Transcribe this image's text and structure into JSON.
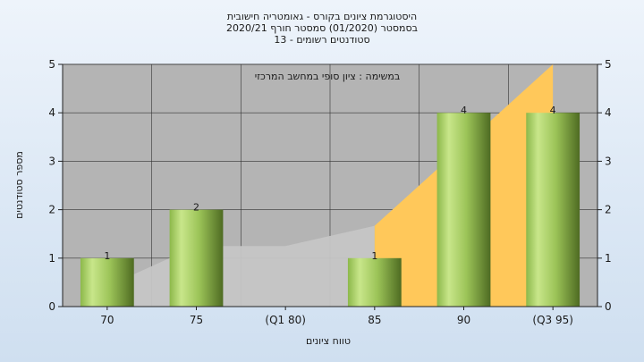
{
  "header": {
    "title_line1": "היסטוגרמת ציונים בקורס - גאומטריה חישובית",
    "title_line2": "בסמסטר  (01/2020)  סמסטר חורף  2020/21",
    "title_line3": "סטודנטים רשומים - 13"
  },
  "chart_data": {
    "type": "bar",
    "title": "היסטוגרמת ציונים בקורס - גאומטריה חישובית",
    "annotation": "במשימה : ציון סופי במחשב המרכזי",
    "xlabel": "טווח ציונים",
    "ylabel": "מספר סטודנטים",
    "categories": [
      "70",
      "75",
      "(Q1 80)",
      "85",
      "90",
      "(Q3 95)"
    ],
    "values": [
      1,
      2,
      0,
      1,
      4,
      4
    ],
    "data_labels": [
      "1",
      "2",
      "",
      "1",
      "4",
      "4"
    ],
    "ylim": [
      0,
      5
    ],
    "yticks": [
      "0",
      "1",
      "2",
      "3",
      "4",
      "5"
    ],
    "grid": true,
    "colors": {
      "plot_bg": "#b4b4b4",
      "bar_light": "#c8e68a",
      "bar_mid": "#8cb84a",
      "bar_dark": "#4e6b22",
      "cumulative_area_gray": "#c6c6c6",
      "cumulative_area_yellow": "#ffc85a"
    }
  }
}
